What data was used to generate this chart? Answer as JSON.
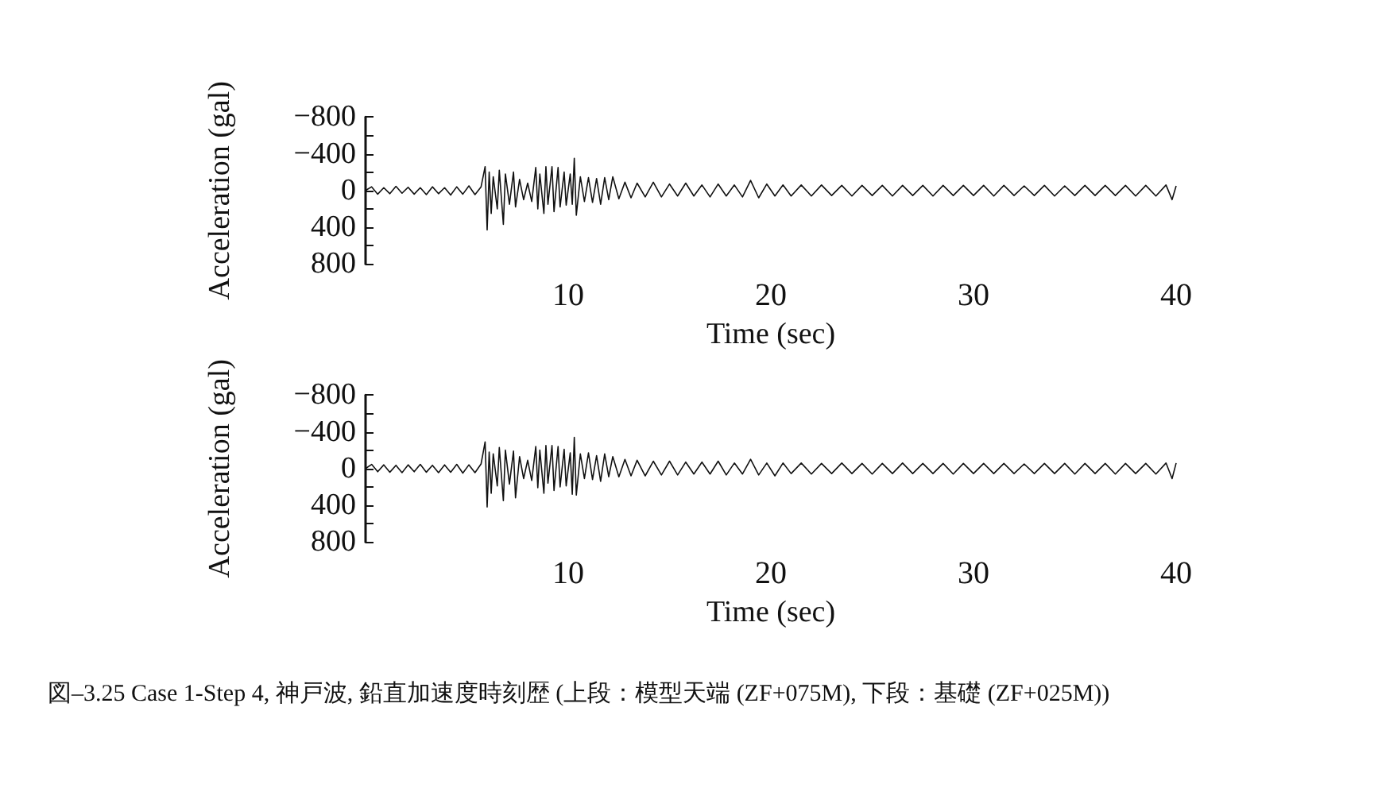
{
  "chart_data": [
    {
      "type": "line",
      "xlabel": "Time (sec)",
      "ylabel": "Acceleration (gal)",
      "xlim": [
        0,
        40
      ],
      "xticks": [
        10,
        20,
        30,
        40
      ],
      "ylim": [
        800,
        -800
      ],
      "yticks": [
        {
          "value": -800,
          "label": "−800"
        },
        {
          "value": -600,
          "label": null
        },
        {
          "value": -400,
          "label": "−400"
        },
        {
          "value": -200,
          "label": null
        },
        0,
        {
          "value": 200,
          "label": null
        },
        400,
        {
          "value": 600,
          "label": null
        },
        800
      ],
      "grid": false,
      "marker": "none",
      "line_style": "solid",
      "series": [
        {
          "color": "#111111",
          "x": [
            0,
            0.3,
            0.6,
            0.9,
            1.2,
            1.5,
            1.8,
            2.1,
            2.4,
            2.7,
            3.0,
            3.3,
            3.6,
            3.9,
            4.2,
            4.5,
            4.8,
            5.1,
            5.4,
            5.7,
            5.9,
            6.0,
            6.1,
            6.2,
            6.3,
            6.5,
            6.6,
            6.8,
            6.9,
            7.1,
            7.3,
            7.4,
            7.6,
            7.8,
            8.0,
            8.2,
            8.4,
            8.5,
            8.6,
            8.8,
            8.9,
            9.0,
            9.2,
            9.3,
            9.5,
            9.6,
            9.8,
            9.9,
            10.1,
            10.2,
            10.3,
            10.4,
            10.6,
            10.8,
            11.0,
            11.2,
            11.4,
            11.6,
            11.8,
            12.0,
            12.2,
            12.5,
            12.8,
            13.1,
            13.4,
            13.8,
            14.2,
            14.6,
            15.0,
            15.4,
            15.8,
            16.2,
            16.6,
            17.0,
            17.4,
            17.8,
            18.2,
            18.6,
            19.0,
            19.4,
            19.8,
            20.2,
            20.6,
            21,
            21.5,
            22,
            22.5,
            23,
            23.5,
            24,
            24.5,
            25,
            25.5,
            26,
            26.5,
            27,
            27.5,
            28,
            28.5,
            29,
            29.5,
            30,
            30.5,
            31,
            31.5,
            32,
            32.5,
            33,
            33.5,
            34,
            34.5,
            35,
            35.5,
            36,
            36.5,
            37,
            37.5,
            38,
            38.5,
            39,
            39.5,
            39.8,
            40
          ],
          "values": [
            0,
            -40,
            40,
            -30,
            35,
            -45,
            30,
            -35,
            40,
            -30,
            45,
            -40,
            35,
            -30,
            50,
            -40,
            40,
            -50,
            45,
            -40,
            -260,
            430,
            -200,
            250,
            -150,
            200,
            -220,
            370,
            -180,
            150,
            -200,
            180,
            -120,
            100,
            -80,
            120,
            -250,
            200,
            -180,
            250,
            -260,
            150,
            -260,
            230,
            -250,
            180,
            -200,
            160,
            -180,
            150,
            -350,
            270,
            -150,
            120,
            -140,
            130,
            -130,
            150,
            -140,
            100,
            -150,
            90,
            -90,
            80,
            -80,
            70,
            -90,
            70,
            -70,
            60,
            -80,
            60,
            -60,
            70,
            -70,
            60,
            -60,
            70,
            -110,
            80,
            -70,
            60,
            -60,
            60,
            -60,
            60,
            -60,
            55,
            -55,
            60,
            -55,
            55,
            -55,
            60,
            -55,
            55,
            -55,
            60,
            -55,
            55,
            -55,
            55,
            -55,
            60,
            -55,
            55,
            -50,
            55,
            -55,
            60,
            -50,
            55,
            -55,
            55,
            -55,
            55,
            -55,
            60,
            -55,
            60,
            -60,
            100,
            -50
          ]
        }
      ]
    },
    {
      "type": "line",
      "xlabel": "Time (sec)",
      "ylabel": "Acceleration (gal)",
      "xlim": [
        0,
        40
      ],
      "xticks": [
        10,
        20,
        30,
        40
      ],
      "ylim": [
        800,
        -800
      ],
      "yticks": [
        {
          "value": -800,
          "label": "−800"
        },
        {
          "value": -600,
          "label": null
        },
        {
          "value": -400,
          "label": "−400"
        },
        {
          "value": -200,
          "label": null
        },
        0,
        {
          "value": 200,
          "label": null
        },
        400,
        {
          "value": 600,
          "label": null
        },
        800
      ],
      "grid": false,
      "marker": "none",
      "line_style": "solid",
      "annotations": [
        "図–3.25 Case 1-Step 4, 神戸波, 鉛直加速度時刻歴 (上段：模型天端 (ZF+075M), 下段：基礎 (ZF+025M))"
      ],
      "series": [
        {
          "color": "#111111",
          "x": [
            0,
            0.3,
            0.6,
            0.9,
            1.2,
            1.5,
            1.8,
            2.1,
            2.4,
            2.7,
            3.0,
            3.3,
            3.6,
            3.9,
            4.2,
            4.5,
            4.8,
            5.1,
            5.4,
            5.7,
            5.9,
            6.0,
            6.1,
            6.2,
            6.3,
            6.5,
            6.6,
            6.8,
            6.9,
            7.1,
            7.3,
            7.4,
            7.6,
            7.8,
            8.0,
            8.2,
            8.4,
            8.5,
            8.6,
            8.8,
            8.9,
            9.0,
            9.2,
            9.3,
            9.5,
            9.6,
            9.8,
            9.9,
            10.1,
            10.2,
            10.3,
            10.4,
            10.6,
            10.8,
            11.0,
            11.2,
            11.4,
            11.6,
            11.8,
            12.0,
            12.2,
            12.5,
            12.8,
            13.1,
            13.4,
            13.8,
            14.2,
            14.6,
            15.0,
            15.4,
            15.8,
            16.2,
            16.6,
            17.0,
            17.4,
            17.8,
            18.2,
            18.6,
            19.0,
            19.4,
            19.8,
            20.2,
            20.6,
            21,
            21.5,
            22,
            22.5,
            23,
            23.5,
            24,
            24.5,
            25,
            25.5,
            26,
            26.5,
            27,
            27.5,
            28,
            28.5,
            29,
            29.5,
            30,
            30.5,
            31,
            31.5,
            32,
            32.5,
            33,
            33.5,
            34,
            34.5,
            35,
            35.5,
            36,
            36.5,
            37,
            37.5,
            38,
            38.5,
            39,
            39.5,
            39.8,
            40
          ],
          "values": [
            0,
            -45,
            35,
            -40,
            40,
            -35,
            45,
            -40,
            35,
            -45,
            40,
            -35,
            45,
            -40,
            40,
            -45,
            50,
            -40,
            45,
            -50,
            -290,
            420,
            -180,
            270,
            -160,
            190,
            -230,
            350,
            -200,
            170,
            -190,
            320,
            -130,
            110,
            -90,
            130,
            -240,
            210,
            -200,
            270,
            -250,
            160,
            -250,
            240,
            -240,
            200,
            -210,
            190,
            -170,
            280,
            -340,
            290,
            -160,
            110,
            -170,
            120,
            -140,
            140,
            -160,
            90,
            -130,
            90,
            -100,
            80,
            -90,
            80,
            -80,
            70,
            -80,
            70,
            -70,
            60,
            -70,
            60,
            -80,
            70,
            -60,
            60,
            -100,
            70,
            -60,
            80,
            -60,
            55,
            -60,
            60,
            -55,
            55,
            -60,
            55,
            -55,
            60,
            -55,
            55,
            -60,
            55,
            -55,
            55,
            -55,
            60,
            -55,
            55,
            -55,
            55,
            -55,
            55,
            -50,
            55,
            -55,
            55,
            -55,
            60,
            -55,
            55,
            -55,
            60,
            -55,
            55,
            -55,
            60,
            -60,
            110,
            -60
          ]
        }
      ]
    }
  ]
}
